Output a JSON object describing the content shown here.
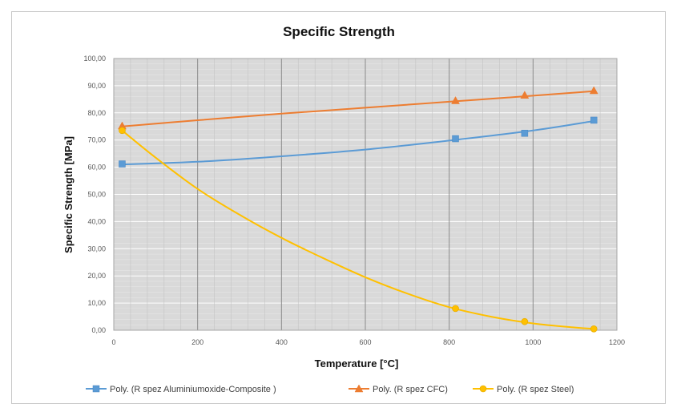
{
  "chart_data": {
    "type": "line",
    "title": "Specific Strength",
    "xlabel": "Temperature [°C]",
    "ylabel": "Specific Strength [MPa]",
    "xlim": [
      0,
      1200
    ],
    "ylim": [
      0,
      100
    ],
    "x_ticks": [
      "0",
      "200",
      "400",
      "600",
      "800",
      "1000",
      "1200"
    ],
    "y_ticks": [
      "0,00",
      "10,00",
      "20,00",
      "30,00",
      "40,00",
      "50,00",
      "60,00",
      "70,00",
      "80,00",
      "90,00",
      "100,00"
    ],
    "grid": true,
    "legend_position": "bottom",
    "series": [
      {
        "name": "Poly. (R spez Aluminiumoxide-Composite )",
        "color": "#5b9bd5",
        "marker": "square",
        "points": [
          [
            20,
            61.2
          ],
          [
            815,
            70.5
          ],
          [
            980,
            72.5
          ],
          [
            1145,
            77.3
          ]
        ],
        "curve": [
          [
            20,
            61.0
          ],
          [
            200,
            62.0
          ],
          [
            400,
            64.0
          ],
          [
            600,
            66.5
          ],
          [
            800,
            69.8
          ],
          [
            1000,
            73.5
          ],
          [
            1145,
            77.0
          ]
        ]
      },
      {
        "name": "Poly. (R spez CFC)",
        "color": "#ed7d31",
        "marker": "triangle",
        "points": [
          [
            20,
            75.2
          ],
          [
            815,
            84.5
          ],
          [
            980,
            86.5
          ],
          [
            1145,
            88.2
          ]
        ],
        "curve": [
          [
            20,
            75.0
          ],
          [
            200,
            77.3
          ],
          [
            400,
            79.7
          ],
          [
            600,
            81.9
          ],
          [
            800,
            84.1
          ],
          [
            1000,
            86.3
          ],
          [
            1145,
            88.0
          ]
        ]
      },
      {
        "name": "Poly. (R spez Steel)",
        "color": "#ffc000",
        "marker": "circle",
        "points": [
          [
            20,
            73.5
          ],
          [
            815,
            8.0
          ],
          [
            980,
            3.2
          ],
          [
            1145,
            0.5
          ]
        ],
        "curve": [
          [
            20,
            73.5
          ],
          [
            100,
            63.5
          ],
          [
            200,
            52.0
          ],
          [
            300,
            42.5
          ],
          [
            400,
            34.0
          ],
          [
            500,
            26.5
          ],
          [
            600,
            19.5
          ],
          [
            700,
            13.5
          ],
          [
            800,
            8.5
          ],
          [
            900,
            5.0
          ],
          [
            1000,
            2.5
          ],
          [
            1100,
            1.0
          ],
          [
            1145,
            0.5
          ]
        ]
      }
    ]
  }
}
